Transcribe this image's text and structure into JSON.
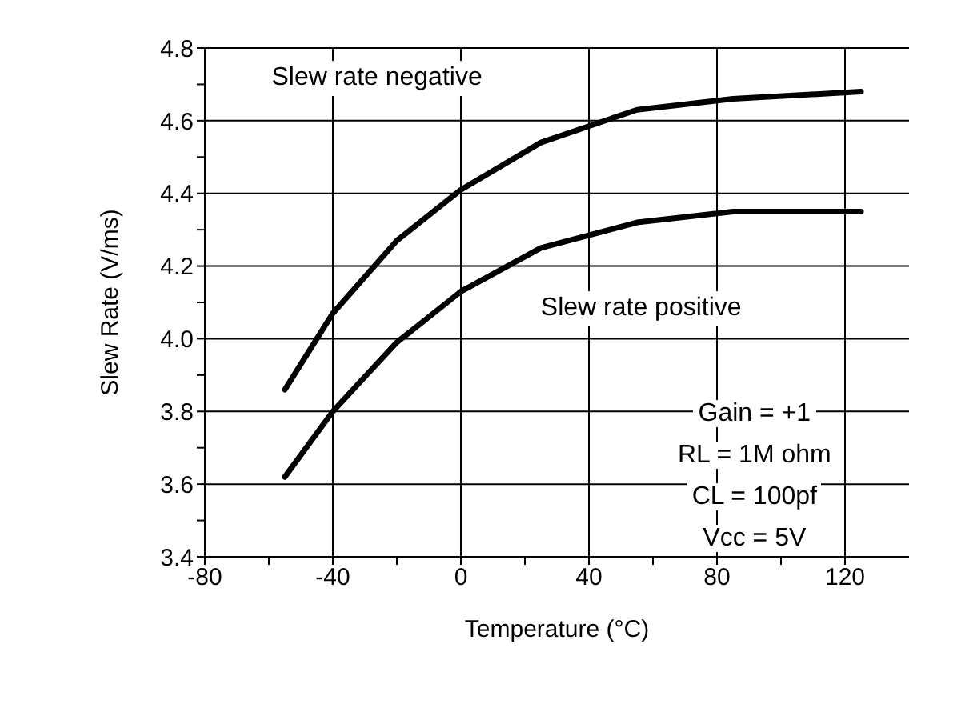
{
  "chart_data": {
    "type": "line",
    "xlabel": "Temperature (°C)",
    "ylabel": "Slew Rate (V/ms)",
    "x": [
      -55,
      -40,
      -20,
      0,
      25,
      55,
      85,
      125
    ],
    "series": [
      {
        "name": "Slew rate negative",
        "color": "#000000",
        "values": [
          3.86,
          4.07,
          4.27,
          4.41,
          4.54,
          4.63,
          4.66,
          4.68
        ]
      },
      {
        "name": "Slew rate positive",
        "color": "#000000",
        "values": [
          3.62,
          3.8,
          3.99,
          4.13,
          4.25,
          4.32,
          4.35,
          4.35
        ]
      }
    ],
    "xlim": [
      -80,
      140
    ],
    "xticks": [
      -80,
      {
        "value": -60,
        "label": null
      },
      -40,
      {
        "value": -20,
        "label": null
      },
      0,
      {
        "value": 20,
        "label": null
      },
      40,
      {
        "value": 60,
        "label": null
      },
      80,
      {
        "value": 100,
        "label": null
      },
      120
    ],
    "ylim": [
      3.4,
      4.8
    ],
    "yticks": [
      {
        "value": 3.4,
        "label": "3.4"
      },
      {
        "value": 3.5,
        "label": null
      },
      {
        "value": 3.6,
        "label": "3.6"
      },
      {
        "value": 3.7,
        "label": null
      },
      {
        "value": 3.8,
        "label": "3.8"
      },
      {
        "value": 3.9,
        "label": null
      },
      {
        "value": 4.0,
        "label": "4.0"
      },
      {
        "value": 4.1,
        "label": null
      },
      {
        "value": 4.2,
        "label": "4.2"
      },
      {
        "value": 4.3,
        "label": null
      },
      {
        "value": 4.4,
        "label": "4.4"
      },
      {
        "value": 4.5,
        "label": null
      },
      {
        "value": 4.6,
        "label": "4.6"
      },
      {
        "value": 4.7,
        "label": null
      },
      {
        "value": 4.8,
        "label": "4.8"
      }
    ],
    "annotations": [
      "Gain = +1",
      "RL = 1M ohm",
      "CL = 100pf",
      "Vcc = 5V"
    ],
    "grid": true,
    "marker": "none",
    "line_style": "solid"
  }
}
